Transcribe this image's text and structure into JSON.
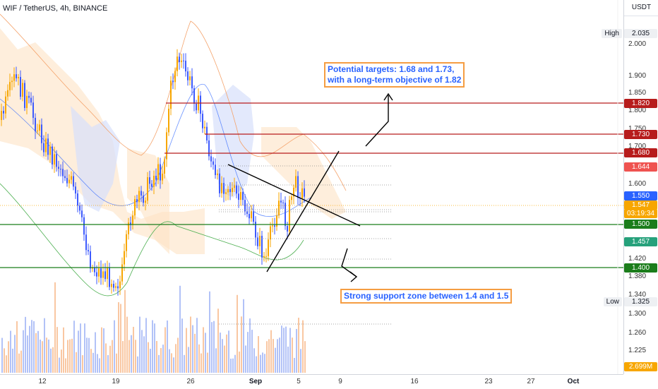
{
  "header": {
    "title": "WIF / TetherUS, 4h, BINANCE"
  },
  "axis": {
    "unit": "USDT",
    "high_label": "High",
    "low_label": "Low",
    "ticks": [
      "2.000",
      "1.900",
      "1.850",
      "1.800",
      "1.750",
      "1.700",
      "1.600",
      "1.420",
      "1.380",
      "1.340",
      "1.300",
      "1.260",
      "1.225"
    ]
  },
  "badges": {
    "high": "2.035",
    "l1820": "1.820",
    "l1730": "1.730",
    "l1680": "1.680",
    "l1644": "1.644",
    "l1550": "1.550",
    "price": "1.547",
    "countdown": "03:19:34",
    "l1500": "1.500",
    "l1457": "1.457",
    "l1400": "1.400",
    "low": "1.325",
    "volume": "2.699M"
  },
  "colors": {
    "up": "#f7a600",
    "down": "#3d5afe",
    "resistance": "#b71c1c",
    "support": "#1b7d1b",
    "annotation_border": "#f59d42",
    "annotation_text": "#2962ff"
  },
  "annotations": {
    "targets_line1": "Potential targets: 1.68 and 1.73,",
    "targets_line2": "with a long-term objective of 1.82",
    "support": "Strong support zone between 1.4 and 1.5"
  },
  "xaxis": {
    "ticks": [
      "12",
      "19",
      "26",
      "Sep",
      "5",
      "9",
      "16",
      "23",
      "27",
      "Oct"
    ]
  }
}
